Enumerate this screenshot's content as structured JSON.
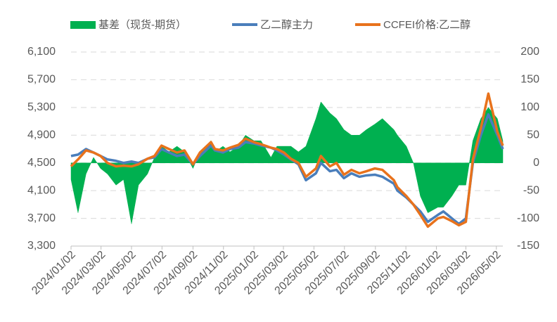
{
  "chart_data": {
    "type": "line",
    "x": [
      "2024/01/02",
      "2024/01/16",
      "2024/02/01",
      "2024/02/16",
      "2024/03/01",
      "2024/03/15",
      "2024/04/01",
      "2024/04/16",
      "2024/05/02",
      "2024/05/16",
      "2024/06/03",
      "2024/06/17",
      "2024/07/01",
      "2024/07/16",
      "2024/08/01",
      "2024/08/16",
      "2024/09/02",
      "2024/09/16",
      "2024/10/08",
      "2024/10/16",
      "2024/11/01",
      "2024/11/15",
      "2024/12/02",
      "2024/12/16",
      "2025/01/02",
      "2025/01/16",
      "2025/02/05",
      "2025/02/17",
      "2025/03/03",
      "2025/03/17",
      "2025/04/01",
      "2025/04/16",
      "2025/05/06",
      "2025/05/16",
      "2025/06/03",
      "2025/06/16",
      "2025/07/01",
      "2025/07/16",
      "2025/08/01",
      "2025/08/15",
      "2025/09/01",
      "2025/09/16",
      "2025/10/09",
      "2025/10/16",
      "2025/11/03",
      "2025/11/17",
      "2025/12/01",
      "2025/12/16",
      "2026/01/05",
      "2026/01/16",
      "2026/02/02",
      "2026/02/16",
      "2026/03/02",
      "2026/03/16",
      "2026/04/01",
      "2026/04/16",
      "2026/05/04",
      "2026/05/15"
    ],
    "series": [
      {
        "name": "基差（现货-期货）",
        "color": "#00b050",
        "axis": "y2",
        "kind": "area",
        "values": [
          -30,
          -90,
          -20,
          10,
          -10,
          -20,
          -40,
          -30,
          -110,
          -40,
          -20,
          10,
          30,
          20,
          30,
          20,
          -10,
          20,
          40,
          20,
          30,
          20,
          30,
          50,
          40,
          40,
          10,
          30,
          30,
          30,
          20,
          30,
          80,
          110,
          90,
          80,
          60,
          50,
          50,
          60,
          70,
          80,
          60,
          50,
          30,
          0,
          -60,
          -90,
          -80,
          -80,
          -60,
          -40,
          -40,
          40,
          80,
          100,
          80,
          40
        ]
      },
      {
        "name": "乙二醇主力",
        "color": "#4a7ebb",
        "kind": "line",
        "values": [
          4600,
          4620,
          4700,
          4650,
          4600,
          4550,
          4530,
          4500,
          4520,
          4500,
          4560,
          4580,
          4700,
          4650,
          4600,
          4620,
          4480,
          4600,
          4750,
          4680,
          4650,
          4700,
          4720,
          4800,
          4780,
          4750,
          4720,
          4680,
          4620,
          4550,
          4480,
          4250,
          4350,
          4500,
          4380,
          4400,
          4280,
          4350,
          4300,
          4320,
          4330,
          4300,
          4200,
          4100,
          4000,
          3900,
          3800,
          3650,
          3750,
          3800,
          3700,
          3620,
          3700,
          4500,
          4900,
          5200,
          4900,
          4700
        ]
      },
      {
        "name": "CCFEI价格:乙二醇",
        "color": "#e8721c",
        "kind": "line",
        "values": [
          4450,
          4550,
          4680,
          4650,
          4600,
          4500,
          4450,
          4460,
          4450,
          4480,
          4560,
          4600,
          4750,
          4700,
          4650,
          4680,
          4480,
          4650,
          4800,
          4700,
          4680,
          4720,
          4760,
          4850,
          4800,
          4770,
          4720,
          4700,
          4650,
          4560,
          4500,
          4300,
          4420,
          4600,
          4450,
          4500,
          4330,
          4400,
          4350,
          4380,
          4420,
          4400,
          4250,
          4150,
          4020,
          3900,
          3750,
          3580,
          3700,
          3720,
          3660,
          3600,
          3650,
          4550,
          5000,
          5500,
          4950,
          4750
        ]
      }
    ],
    "xlim": [
      "2024/01/02",
      "2026/05/15"
    ],
    "xticks": [
      "2024/01/02",
      "2024/03/02",
      "2024/05/02",
      "2024/07/02",
      "2024/09/02",
      "2024/11/02",
      "2025/01/02",
      "2025/03/02",
      "2025/05/02",
      "2025/07/02",
      "2025/09/02",
      "2025/11/02",
      "2026/01/02",
      "2026/03/02",
      "2026/05/02"
    ],
    "ylim": [
      3300,
      6100
    ],
    "yticks": [
      {
        "value": 3300,
        "label": "3,300"
      },
      {
        "value": 3700,
        "label": "3,700"
      },
      {
        "value": 4100,
        "label": "4,100"
      },
      {
        "value": 4500,
        "label": "4,500"
      },
      {
        "value": 4900,
        "label": "4,900"
      },
      {
        "value": 5300,
        "label": "5,300"
      },
      {
        "value": 5700,
        "label": "5,700"
      },
      {
        "value": 6100,
        "label": "6,100"
      }
    ],
    "y2lim": [
      -150,
      200
    ],
    "y2ticks": [
      -150,
      -100,
      -50,
      0,
      50,
      100,
      150,
      200
    ],
    "grid": true
  }
}
